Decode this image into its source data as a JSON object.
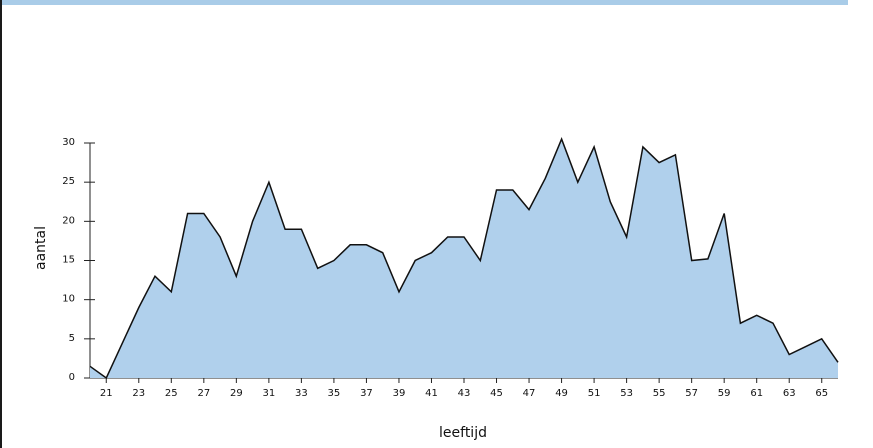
{
  "chart_data": {
    "type": "area",
    "title": "",
    "xlabel": "leeftijd",
    "ylabel": "aantal",
    "x": [
      20,
      21,
      22,
      23,
      24,
      25,
      26,
      27,
      28,
      29,
      30,
      31,
      32,
      33,
      34,
      35,
      36,
      37,
      38,
      39,
      40,
      41,
      42,
      43,
      44,
      45,
      46,
      47,
      48,
      49,
      50,
      51,
      52,
      53,
      54,
      55,
      56,
      57,
      58,
      59,
      60,
      61,
      62,
      63,
      64,
      65,
      66
    ],
    "values": [
      1.5,
      0,
      4.5,
      9,
      13,
      11,
      21,
      21,
      18,
      13,
      20,
      25,
      19,
      19,
      14,
      15,
      17,
      17,
      16,
      11,
      15,
      16,
      18,
      18,
      15,
      24,
      24,
      21.5,
      25.5,
      30.5,
      25,
      29.5,
      22.5,
      18,
      29.5,
      27.5,
      28.5,
      15,
      15.2,
      21,
      7,
      8,
      7,
      3,
      4,
      5,
      2
    ],
    "xticks": [
      "21",
      "23",
      "25",
      "27",
      "29",
      "31",
      "33",
      "35",
      "37",
      "39",
      "41",
      "43",
      "45",
      "47",
      "49",
      "51",
      "53",
      "55",
      "57",
      "59",
      "61",
      "63",
      "65"
    ],
    "yticks": [
      "0",
      "5",
      "10",
      "15",
      "20",
      "25",
      "30"
    ],
    "xlim": [
      20,
      66
    ],
    "ylim": [
      0,
      30
    ],
    "grid": false,
    "colors": {
      "fill": "#b0d0ec",
      "line": "#111111",
      "band": "#a9cce8"
    }
  }
}
